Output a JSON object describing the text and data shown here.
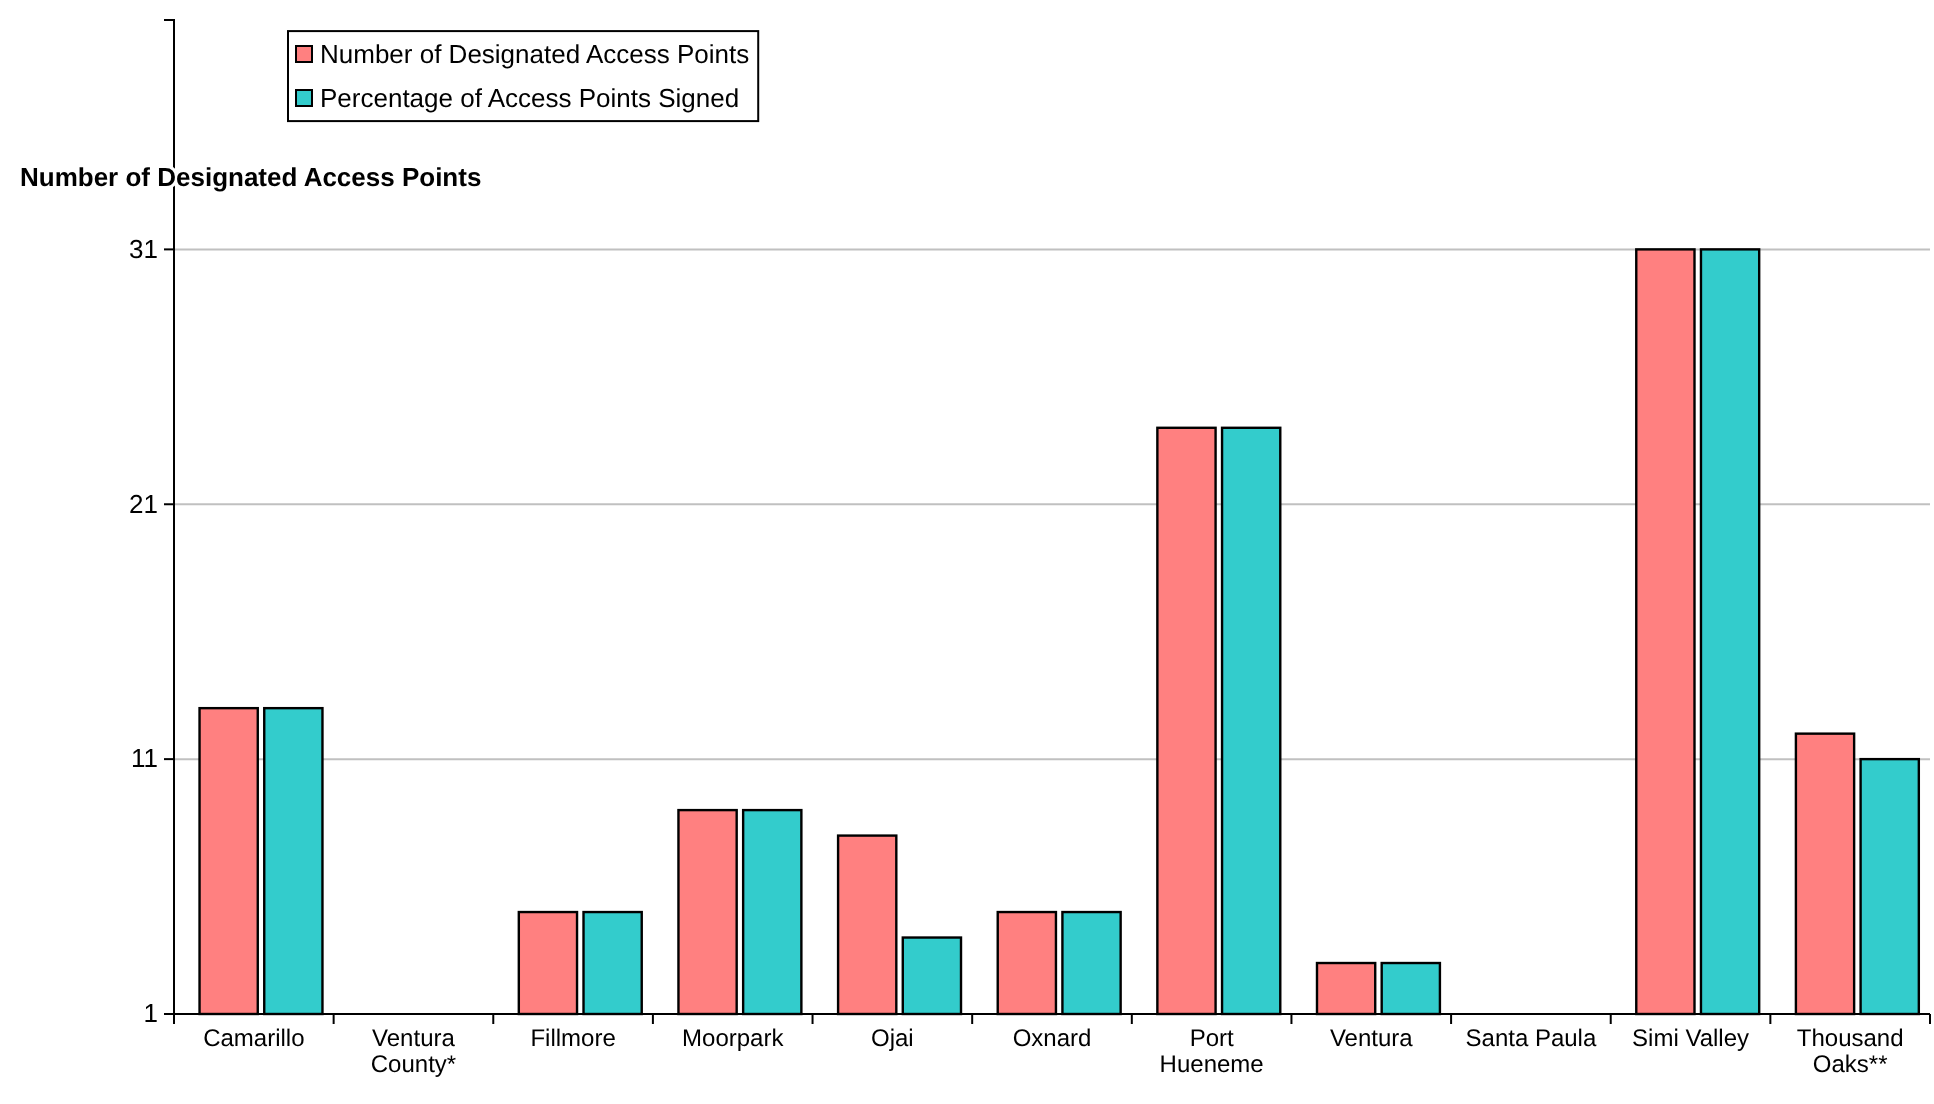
{
  "chart_data": {
    "type": "bar",
    "ylabel": "Number of Designated Access Points",
    "categories": [
      "Camarillo",
      "Ventura County*",
      "Fillmore",
      "Moorpark",
      "Ojai",
      "Oxnard",
      "Port Hueneme",
      "Ventura",
      "Santa Paula",
      "Simi Valley",
      "Thousand Oaks**"
    ],
    "series": [
      {
        "name": "Number of Designated Access Points",
        "color": "#ff8080",
        "values": [
          13,
          null,
          5,
          9,
          8,
          5,
          24,
          3,
          1,
          31,
          12
        ]
      },
      {
        "name": "Percentage of Access Points Signed",
        "color": "#33cccc",
        "values": [
          13,
          null,
          5,
          9,
          4,
          5,
          24,
          3,
          1,
          31,
          11
        ]
      }
    ],
    "ylim": [
      1,
      40
    ],
    "yticks": [
      1,
      11,
      21,
      31
    ],
    "grid": "y",
    "legend": "top left"
  }
}
